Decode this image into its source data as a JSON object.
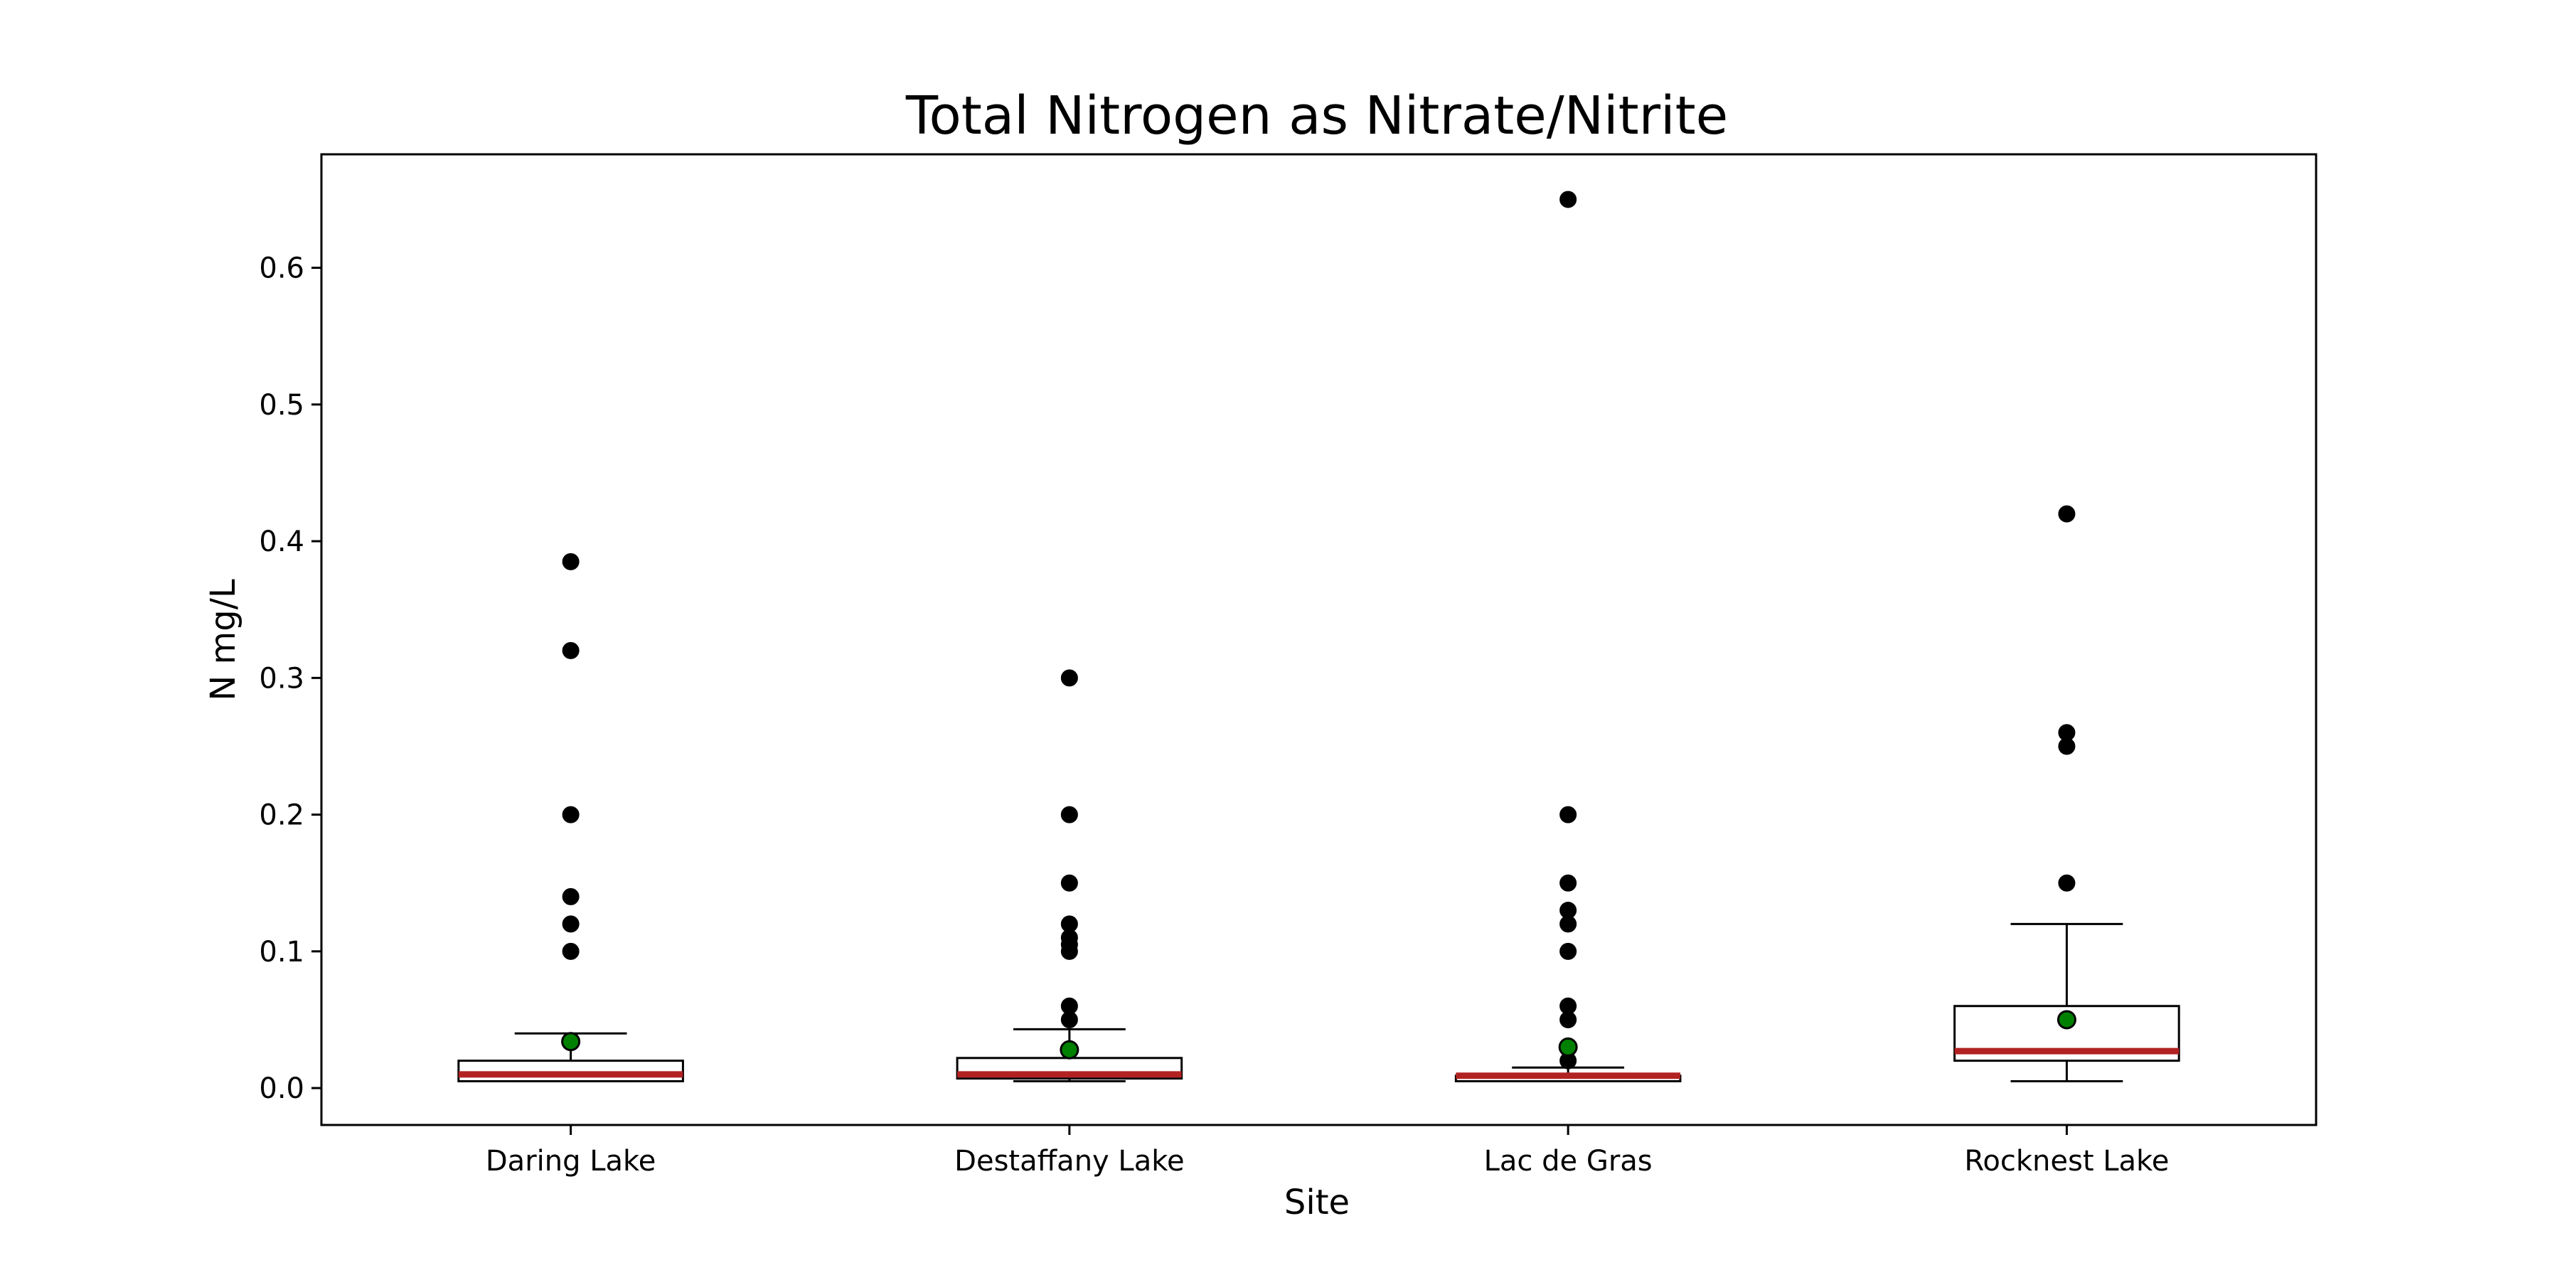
{
  "chart_data": {
    "type": "box",
    "title": "Total Nitrogen as Nitrate/Nitrite",
    "xlabel": "Site",
    "ylabel": "N mg/L",
    "categories": [
      "Daring Lake",
      "Destaffany Lake",
      "Lac de Gras",
      "Rocknest Lake"
    ],
    "ylim": [
      -0.027,
      0.683
    ],
    "yticks": [
      0.0,
      0.1,
      0.2,
      0.3,
      0.4,
      0.5,
      0.6
    ],
    "ytick_labels": [
      "0.0",
      "0.1",
      "0.2",
      "0.3",
      "0.4",
      "0.5",
      "0.6"
    ],
    "grid": false,
    "boxes": [
      {
        "category": "Daring Lake",
        "whisker_low": 0.005,
        "q1": 0.005,
        "median": 0.01,
        "q3": 0.02,
        "whisker_high": 0.04,
        "mean": 0.034,
        "outliers": [
          0.1,
          0.12,
          0.14,
          0.2,
          0.32,
          0.385
        ]
      },
      {
        "category": "Destaffany Lake",
        "whisker_low": 0.005,
        "q1": 0.007,
        "median": 0.01,
        "q3": 0.022,
        "whisker_high": 0.043,
        "mean": 0.028,
        "outliers": [
          0.05,
          0.06,
          0.1,
          0.105,
          0.11,
          0.12,
          0.15,
          0.2,
          0.3
        ]
      },
      {
        "category": "Lac de Gras",
        "whisker_low": 0.005,
        "q1": 0.005,
        "median": 0.009,
        "q3": 0.009,
        "whisker_high": 0.015,
        "mean": 0.03,
        "outliers": [
          0.02,
          0.05,
          0.06,
          0.1,
          0.12,
          0.13,
          0.15,
          0.2,
          0.65
        ]
      },
      {
        "category": "Rocknest Lake",
        "whisker_low": 0.005,
        "q1": 0.02,
        "median": 0.027,
        "q3": 0.06,
        "whisker_high": 0.12,
        "mean": 0.05,
        "outliers": [
          0.15,
          0.25,
          0.26,
          0.42
        ]
      }
    ],
    "colors": {
      "median": "#b22222",
      "mean": "#008000",
      "outlier": "#000000",
      "box_edge": "#000000"
    }
  }
}
